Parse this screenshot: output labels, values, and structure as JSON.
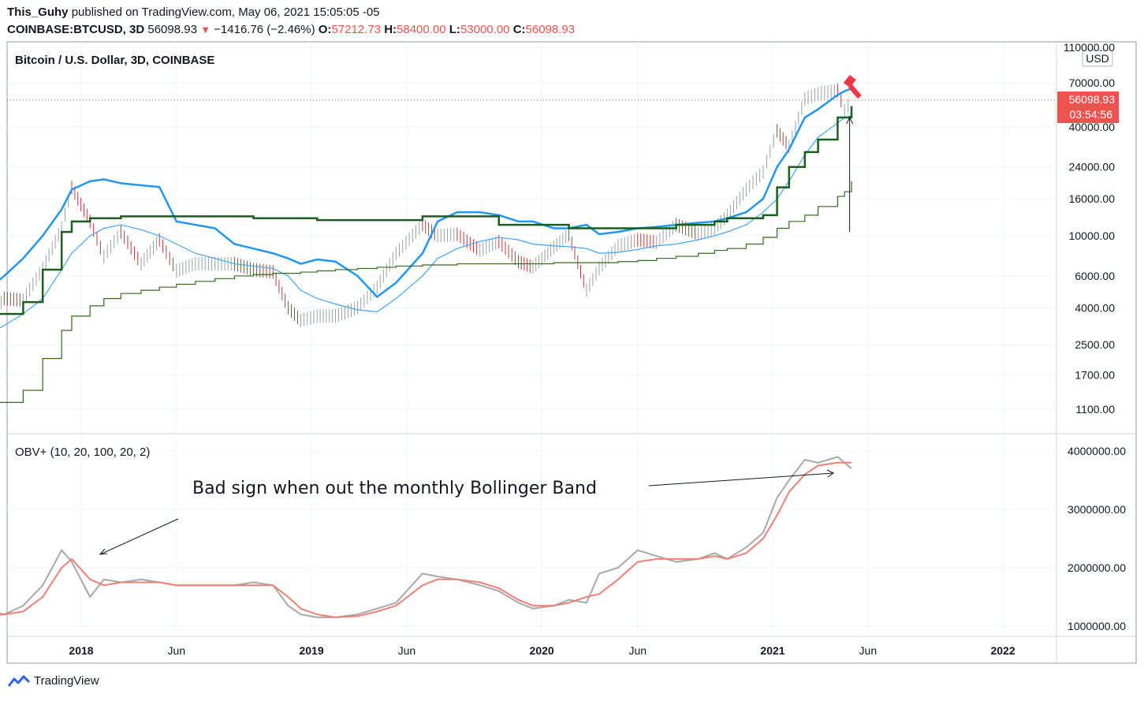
{
  "header": {
    "line1": {
      "author": "This_Guhy",
      "published": "published on TradingView.com, May 06, 2021 15:05:05 -05"
    },
    "line2": {
      "symbol": "COINBASE:BTCUSD, 3D",
      "last": "56098.93",
      "change": "−1416.76 (−2.46%)",
      "open_label": "O:",
      "open": "57212.73",
      "high_label": "H:",
      "high": "58400.00",
      "low_label": "L:",
      "low": "53000.00",
      "close_label": "C:",
      "close": "56098.93"
    }
  },
  "colors": {
    "upper_band": "#2196f3",
    "basis": "#42a5f5",
    "step_thick": "#1b5e20",
    "step_thin": "#33691e",
    "price": "#434651",
    "obv": "#a8a8a8",
    "obv_ma": "#ef8073",
    "last_price": "#ef5350"
  },
  "chart_data": [
    {
      "type": "line",
      "pane": "price",
      "title": "Bitcoin / U.S. Dollar, 3D, COINBASE",
      "currency": "USD",
      "scale": "log",
      "ylim": [
        900,
        115000
      ],
      "y_ticks": [
        "110000.00",
        "70000.00",
        "40000.00",
        "24000.00",
        "16000.00",
        "10000.00",
        "6000.00",
        "4000.00",
        "2500.00",
        "1700.00",
        "1100.00"
      ],
      "last_price_label": "56098.93",
      "countdown_label": "03:54:56",
      "x": [
        "2017-07-20",
        "2017-09-01",
        "2017-10-01",
        "2017-11-01",
        "2017-12-01",
        "2017-12-17",
        "2018-01-15",
        "2018-02-06",
        "2018-03-05",
        "2018-04-06",
        "2018-05-05",
        "2018-06-01",
        "2018-07-01",
        "2018-08-01",
        "2018-09-01",
        "2018-10-01",
        "2018-11-01",
        "2018-11-25",
        "2018-12-15",
        "2019-01-10",
        "2019-02-08",
        "2019-03-15",
        "2019-04-15",
        "2019-05-15",
        "2019-06-26",
        "2019-07-20",
        "2019-08-20",
        "2019-09-25",
        "2019-10-25",
        "2019-11-25",
        "2019-12-18",
        "2020-01-20",
        "2020-02-13",
        "2020-03-12",
        "2020-04-01",
        "2020-05-01",
        "2020-06-01",
        "2020-07-01",
        "2020-08-01",
        "2020-09-05",
        "2020-10-01",
        "2020-10-21",
        "2020-11-20",
        "2020-12-17",
        "2021-01-08",
        "2021-01-27",
        "2021-02-21",
        "2021-03-14",
        "2021-04-14",
        "2021-04-25",
        "2021-05-06"
      ],
      "series": [
        {
          "role": "price",
          "values": [
            2800,
            4500,
            4400,
            6600,
            11000,
            18500,
            12000,
            7700,
            10500,
            7000,
            9500,
            6400,
            7000,
            7000,
            7000,
            6500,
            6300,
            4000,
            3400,
            3600,
            3600,
            4000,
            5200,
            8000,
            11500,
            10000,
            10200,
            8300,
            9300,
            7200,
            6700,
            8600,
            10200,
            5000,
            6600,
            8800,
            9500,
            9200,
            11500,
            10300,
            11000,
            12900,
            18000,
            22500,
            38000,
            31000,
            57000,
            61000,
            63500,
            49000,
            56100
          ]
        },
        {
          "name": "",
          "role": "upper_band",
          "values": [
            4500,
            6000,
            7500,
            10000,
            14000,
            18000,
            20000,
            20500,
            19500,
            19000,
            18600,
            12000,
            11500,
            11000,
            9000,
            8500,
            8000,
            7500,
            7000,
            7400,
            7200,
            6000,
            4600,
            5500,
            8000,
            12000,
            13500,
            13500,
            13000,
            12000,
            12000,
            11000,
            11000,
            11500,
            10200,
            10500,
            11000,
            11200,
            11500,
            11800,
            12000,
            12500,
            13500,
            16000,
            24000,
            30000,
            45000,
            50000,
            60000,
            63000,
            65000
          ]
        },
        {
          "name": "",
          "role": "basis",
          "values": [
            2600,
            3200,
            3700,
            4500,
            6500,
            8000,
            10000,
            11000,
            11500,
            10800,
            10000,
            9000,
            8000,
            7500,
            7000,
            6800,
            6600,
            6000,
            5000,
            4500,
            4200,
            3900,
            3800,
            4500,
            6000,
            7500,
            8500,
            9300,
            9800,
            9500,
            9000,
            8800,
            8700,
            8500,
            8000,
            8100,
            8400,
            8800,
            9000,
            9500,
            10000,
            10500,
            11500,
            13500,
            16000,
            20000,
            28000,
            35000,
            42000,
            45000,
            46000
          ]
        },
        {
          "name": "",
          "role": "step_thick",
          "values": [
            3700,
            3700,
            4300,
            6500,
            10500,
            12000,
            12500,
            12500,
            12800,
            12800,
            12800,
            12800,
            12800,
            12800,
            12800,
            12500,
            12500,
            12500,
            12500,
            12200,
            12200,
            12200,
            12200,
            12200,
            12800,
            12800,
            12800,
            12800,
            11500,
            11500,
            11500,
            11500,
            11000,
            11000,
            11000,
            11000,
            11000,
            11000,
            11500,
            11500,
            12000,
            12500,
            12500,
            13000,
            18500,
            24000,
            29000,
            34000,
            45000,
            45000,
            52000
          ]
        },
        {
          "name": "",
          "role": "step_thin",
          "values": [
            1200,
            1200,
            1400,
            2100,
            3000,
            3600,
            4100,
            4500,
            4800,
            5000,
            5200,
            5400,
            5600,
            5800,
            6000,
            6100,
            6200,
            6200,
            6300,
            6400,
            6500,
            6600,
            6700,
            6800,
            6900,
            6900,
            7000,
            7000,
            7000,
            7000,
            7000,
            7100,
            7100,
            7100,
            7100,
            7200,
            7300,
            7500,
            7700,
            8000,
            8300,
            8500,
            9000,
            9800,
            11000,
            12000,
            13000,
            14500,
            16500,
            17500,
            20000
          ]
        }
      ],
      "annotation": {
        "type": "arrow",
        "from_value": 10500,
        "to_value": 45000,
        "date": "2021-05-03"
      }
    },
    {
      "type": "line",
      "pane": "indicator",
      "title": "OBV+ (10, 20, 100, 20, 2)",
      "ylim": [
        950000,
        4050000
      ],
      "y_ticks": [
        "4000000.00",
        "3000000.00",
        "2000000.00",
        "1000000.00"
      ],
      "x_ticks": [
        "2018",
        "Jun",
        "2019",
        "Jun",
        "2020",
        "Jun",
        "2021",
        "Jun",
        "2022"
      ],
      "x": [
        "2017-07-20",
        "2017-09-01",
        "2017-10-01",
        "2017-11-01",
        "2017-12-01",
        "2017-12-17",
        "2018-01-15",
        "2018-02-06",
        "2018-03-05",
        "2018-04-06",
        "2018-05-05",
        "2018-06-01",
        "2018-07-01",
        "2018-08-01",
        "2018-09-01",
        "2018-10-01",
        "2018-11-01",
        "2018-11-25",
        "2018-12-15",
        "2019-01-10",
        "2019-02-08",
        "2019-03-15",
        "2019-04-15",
        "2019-05-15",
        "2019-06-26",
        "2019-07-20",
        "2019-08-20",
        "2019-09-25",
        "2019-10-25",
        "2019-11-25",
        "2019-12-18",
        "2020-01-20",
        "2020-02-13",
        "2020-03-12",
        "2020-04-01",
        "2020-05-01",
        "2020-06-01",
        "2020-07-01",
        "2020-08-01",
        "2020-09-05",
        "2020-10-01",
        "2020-10-21",
        "2020-11-20",
        "2020-12-17",
        "2021-01-08",
        "2021-01-27",
        "2021-02-21",
        "2021-03-14",
        "2021-04-14",
        "2021-04-25",
        "2021-05-06"
      ],
      "series": [
        {
          "name": "",
          "role": "obv",
          "values": [
            1150000,
            1200000,
            1350000,
            1700000,
            2300000,
            2100000,
            1500000,
            1800000,
            1750000,
            1800000,
            1750000,
            1700000,
            1700000,
            1700000,
            1700000,
            1750000,
            1700000,
            1350000,
            1200000,
            1150000,
            1150000,
            1200000,
            1300000,
            1400000,
            1900000,
            1850000,
            1800000,
            1700000,
            1600000,
            1400000,
            1300000,
            1350000,
            1450000,
            1400000,
            1900000,
            2000000,
            2300000,
            2200000,
            2100000,
            2150000,
            2250000,
            2150000,
            2350000,
            2600000,
            3200000,
            3500000,
            3850000,
            3800000,
            3900000,
            3800000,
            3700000
          ]
        },
        {
          "name": "",
          "role": "obv_ma",
          "values": [
            1300000,
            1200000,
            1250000,
            1500000,
            2000000,
            2150000,
            1800000,
            1700000,
            1750000,
            1750000,
            1750000,
            1700000,
            1700000,
            1700000,
            1700000,
            1700000,
            1700000,
            1500000,
            1300000,
            1200000,
            1150000,
            1170000,
            1250000,
            1350000,
            1700000,
            1800000,
            1800000,
            1750000,
            1650000,
            1450000,
            1350000,
            1350000,
            1400000,
            1500000,
            1550000,
            1800000,
            2100000,
            2150000,
            2150000,
            2150000,
            2200000,
            2150000,
            2250000,
            2500000,
            2900000,
            3300000,
            3600000,
            3750000,
            3800000,
            3800000,
            3800000
          ]
        }
      ],
      "annotations": [
        {
          "text": "Bad sign when out the monthly Bollinger Band"
        }
      ]
    }
  ],
  "footer": {
    "brand": "TradingView"
  }
}
